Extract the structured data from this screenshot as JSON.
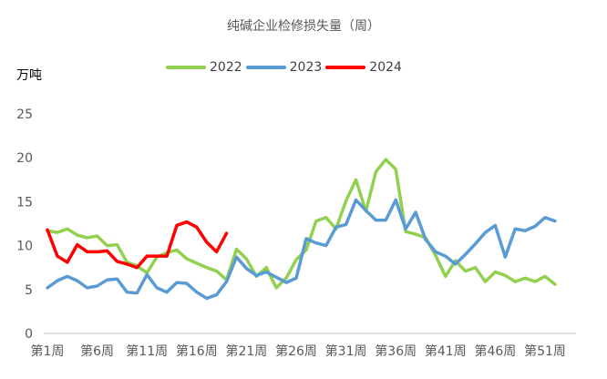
{
  "chart_data": {
    "type": "line",
    "title": "纯碱企业检修损失量（周）",
    "ylabel": "万吨",
    "xlabel": "",
    "ylim": [
      0,
      25
    ],
    "yticks": [
      0,
      5,
      10,
      15,
      20,
      25
    ],
    "grid": false,
    "legend_position": "top",
    "x_tick_labels": [
      "第1周",
      "第6周",
      "第11周",
      "第16周",
      "第21周",
      "第26周",
      "第31周",
      "第36周",
      "第41周",
      "第46周",
      "第51周"
    ],
    "x": [
      1,
      2,
      3,
      4,
      5,
      6,
      7,
      8,
      9,
      10,
      11,
      12,
      13,
      14,
      15,
      16,
      17,
      18,
      19,
      20,
      21,
      22,
      23,
      24,
      25,
      26,
      27,
      28,
      29,
      30,
      31,
      32,
      33,
      34,
      35,
      36,
      37,
      38,
      39,
      40,
      41,
      42,
      43,
      44,
      45,
      46,
      47,
      48,
      49,
      50,
      51,
      52
    ],
    "series": [
      {
        "name": "2022",
        "color": "#92d050",
        "values": [
          11.7,
          11.5,
          11.9,
          11.2,
          10.9,
          11.1,
          10.0,
          10.1,
          8.1,
          7.7,
          6.9,
          8.7,
          9.2,
          9.5,
          8.5,
          8.0,
          7.5,
          7.1,
          6.1,
          9.6,
          8.5,
          6.5,
          7.5,
          5.2,
          6.3,
          8.4,
          9.5,
          12.8,
          13.2,
          11.9,
          15.1,
          17.5,
          13.9,
          18.4,
          19.8,
          18.7,
          11.6,
          11.3,
          10.9,
          8.9,
          6.5,
          8.3,
          7.1,
          7.5,
          5.9,
          7.0,
          6.6,
          5.9,
          6.3,
          5.9,
          6.5,
          5.6
        ]
      },
      {
        "name": "2023",
        "color": "#5b9bd5",
        "values": [
          5.2,
          6.0,
          6.5,
          6.0,
          5.2,
          5.4,
          6.1,
          6.2,
          4.7,
          4.6,
          6.7,
          5.2,
          4.7,
          5.8,
          5.7,
          4.7,
          4.0,
          4.4,
          5.9,
          8.7,
          7.4,
          6.6,
          7.0,
          6.4,
          5.8,
          6.3,
          10.8,
          10.3,
          10.0,
          12.1,
          12.4,
          15.2,
          14.0,
          12.9,
          12.9,
          15.2,
          11.9,
          13.8,
          10.7,
          9.3,
          8.8,
          7.9,
          9.0,
          10.2,
          11.5,
          12.3,
          8.7,
          11.9,
          11.7,
          12.2,
          13.2,
          12.8
        ]
      },
      {
        "name": "2024",
        "color": "#ff0000",
        "values": [
          11.8,
          8.8,
          8.1,
          10.1,
          9.3,
          9.3,
          9.4,
          8.2,
          7.9,
          7.5,
          8.8,
          8.8,
          8.8,
          12.3,
          12.7,
          12.1,
          10.4,
          9.3,
          11.4
        ]
      }
    ]
  },
  "title": "纯碱企业检修损失量（周）",
  "unit": "万吨",
  "legend": [
    {
      "label": "2022",
      "color": "#92d050"
    },
    {
      "label": "2023",
      "color": "#5b9bd5"
    },
    {
      "label": "2024",
      "color": "#ff0000"
    }
  ],
  "colors": {
    "axis": "#d9d9d9",
    "text": "#595959"
  }
}
